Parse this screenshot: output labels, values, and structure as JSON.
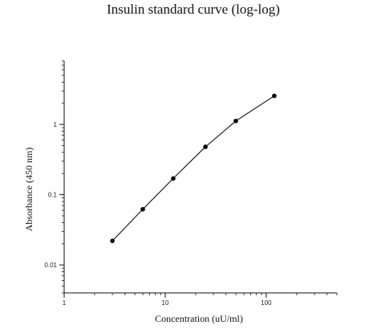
{
  "chart_data": {
    "type": "line",
    "title": "Insulin standard curve (log-log)",
    "xlabel": "Concentration (uU/ml)",
    "ylabel": "Absorbance (450 nm)",
    "xscale": "log",
    "yscale": "log",
    "xlim": [
      1,
      500
    ],
    "ylim": [
      0.004,
      8
    ],
    "xticks": [
      1,
      10,
      100
    ],
    "xtick_labels": [
      "1",
      "10",
      "100"
    ],
    "yticks": [
      0.01,
      0.1,
      1
    ],
    "ytick_labels": [
      "0.01",
      "0.1",
      "1"
    ],
    "grid": false,
    "legend": "none",
    "series": [
      {
        "x": [
          3,
          6,
          12,
          25,
          50,
          120
        ],
        "y": [
          0.022,
          0.062,
          0.17,
          0.48,
          1.12,
          2.55
        ]
      }
    ],
    "colors": {
      "line": "#111111",
      "marker": "#000000"
    }
  }
}
